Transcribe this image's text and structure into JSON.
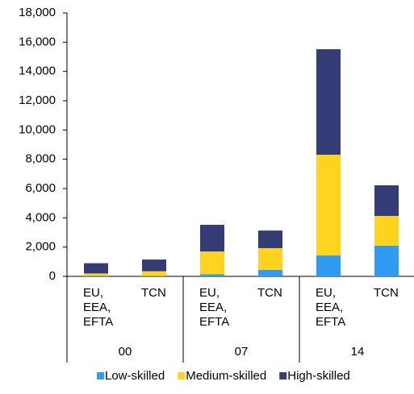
{
  "chart_data": {
    "type": "stacked-bar",
    "categories": [
      "EU, EEA, EFTA",
      "TCN",
      "EU, EEA, EFTA",
      "TCN",
      "EU, EEA, EFTA",
      "TCN"
    ],
    "group_labels": [
      "00",
      "07",
      "14"
    ],
    "series": [
      {
        "name": "Low-skilled",
        "color": "#2f9bf2",
        "values": [
          30,
          20,
          150,
          450,
          1430,
          2100
        ]
      },
      {
        "name": "Medium-skilled",
        "color": "#ffd320",
        "values": [
          170,
          330,
          1550,
          1480,
          6880,
          2030
        ]
      },
      {
        "name": "High-skilled",
        "color": "#333c74",
        "values": [
          700,
          800,
          1820,
          1200,
          7210,
          2090
        ]
      }
    ],
    "ylim": [
      0,
      18000
    ],
    "yticks": [
      0,
      {
        "value": 2000,
        "label": "2,000"
      },
      {
        "value": 4000,
        "label": "4,000"
      },
      {
        "value": 6000,
        "label": "6,000"
      },
      {
        "value": 8000,
        "label": "8,000"
      },
      {
        "value": 10000,
        "label": "10,000"
      },
      {
        "value": 12000,
        "label": "12,000"
      },
      {
        "value": 14000,
        "label": "14,000"
      },
      {
        "value": 16000,
        "label": "16,000"
      },
      {
        "value": 18000,
        "label": "18,000"
      }
    ],
    "legend": "bottom"
  }
}
